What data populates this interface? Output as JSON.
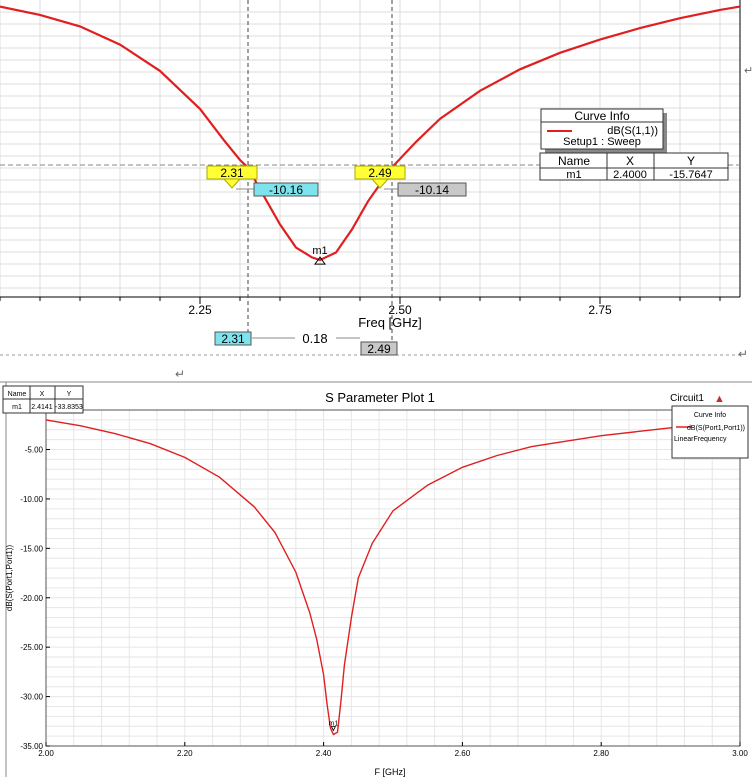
{
  "chart_data": [
    {
      "type": "line",
      "title": "",
      "xlabel": "Freq [GHz]",
      "ylabel": "",
      "xlim": [
        2.0,
        2.925
      ],
      "ylim": [
        -18.0,
        0.0
      ],
      "x_ticks": [
        "2.25",
        "2.50",
        "2.75"
      ],
      "x_tick_values": [
        2.25,
        2.5,
        2.75
      ],
      "grid": true,
      "series": [
        {
          "name": "dB(S(1,1))",
          "color": "#e02020",
          "x": [
            2.0,
            2.05,
            2.1,
            2.15,
            2.2,
            2.25,
            2.28,
            2.3,
            2.31,
            2.33,
            2.35,
            2.37,
            2.39,
            2.4,
            2.42,
            2.44,
            2.46,
            2.49,
            2.52,
            2.55,
            2.6,
            2.65,
            2.7,
            2.75,
            2.8,
            2.85,
            2.9,
            2.925
          ],
          "y": [
            -0.4,
            -0.9,
            -1.6,
            -2.7,
            -4.3,
            -6.6,
            -8.5,
            -9.7,
            -10.16,
            -11.9,
            -13.6,
            -15.0,
            -15.6,
            -15.76,
            -15.3,
            -13.9,
            -12.2,
            -10.14,
            -8.6,
            -7.2,
            -5.5,
            -4.2,
            -3.2,
            -2.4,
            -1.7,
            -1.1,
            -0.6,
            -0.4
          ]
        }
      ],
      "legend": {
        "title": "Curve Info",
        "entry": "dB(S(1,1))",
        "sub": "Setup1 : Sweep",
        "placement": "right"
      },
      "marker_table": {
        "headers": [
          "Name",
          "X",
          "Y"
        ],
        "row": [
          "m1",
          "2.4000",
          "-15.7647"
        ]
      },
      "marker": {
        "name": "m1",
        "x": 2.4,
        "y": -15.7647
      },
      "hline": -10.0,
      "vlines": [
        {
          "x": 2.31,
          "label": "2.31",
          "value": "-10.16",
          "color": "#7fe3ee"
        },
        {
          "x": 2.49,
          "label": "2.49",
          "value": "-10.14",
          "color": "#c8c8c8"
        }
      ],
      "delta": {
        "left": "2.31",
        "value": "0.18",
        "right": "2.49"
      }
    },
    {
      "type": "line",
      "title": "S Parameter Plot 1",
      "corner_label": "Circuit1",
      "xlabel": "F [GHz]",
      "ylabel": "dB(S(Port1,Port1))",
      "xlim": [
        2.0,
        3.0
      ],
      "ylim": [
        -35.0,
        -1.0
      ],
      "x_ticks": [
        "2.00",
        "2.20",
        "2.40",
        "2.60",
        "2.80",
        "3.00"
      ],
      "x_tick_values": [
        2.0,
        2.2,
        2.4,
        2.6,
        2.8,
        3.0
      ],
      "y_ticks": [
        "-5.00",
        "-10.00",
        "-15.00",
        "-20.00",
        "-25.00",
        "-30.00",
        "-35.00"
      ],
      "y_tick_values": [
        -5,
        -10,
        -15,
        -20,
        -25,
        -30,
        -35
      ],
      "grid": true,
      "series": [
        {
          "name": "dB(S(Port1,Port1))",
          "color": "#e02020",
          "x": [
            2.0,
            2.05,
            2.1,
            2.15,
            2.2,
            2.25,
            2.3,
            2.33,
            2.36,
            2.38,
            2.39,
            2.4,
            2.405,
            2.41,
            2.4141,
            2.42,
            2.425,
            2.43,
            2.44,
            2.45,
            2.47,
            2.5,
            2.55,
            2.6,
            2.65,
            2.7,
            2.8,
            2.9,
            2.92
          ],
          "y": [
            -2.0,
            -2.6,
            -3.4,
            -4.4,
            -5.8,
            -7.8,
            -10.8,
            -13.4,
            -17.4,
            -21.5,
            -24.2,
            -27.8,
            -30.8,
            -33.2,
            -33.84,
            -33.6,
            -30.5,
            -26.8,
            -22.0,
            -18.0,
            -14.5,
            -11.2,
            -8.6,
            -6.8,
            -5.6,
            -4.7,
            -3.6,
            -2.8,
            -2.7
          ]
        }
      ],
      "legend": {
        "title": "Curve Info",
        "entry": "dB(S(Port1,Port1))",
        "sub": "LinearFrequency",
        "placement": "top-right"
      },
      "marker_table": {
        "headers": [
          "Name",
          "X",
          "Y"
        ],
        "row": [
          "m1",
          "2.4141",
          "-33.8353"
        ]
      },
      "marker": {
        "name": "m1",
        "x": 2.4141,
        "y": -33.8353
      }
    }
  ],
  "misc": {
    "return_glyph": "↵",
    "triangle_glyph": "▲"
  }
}
